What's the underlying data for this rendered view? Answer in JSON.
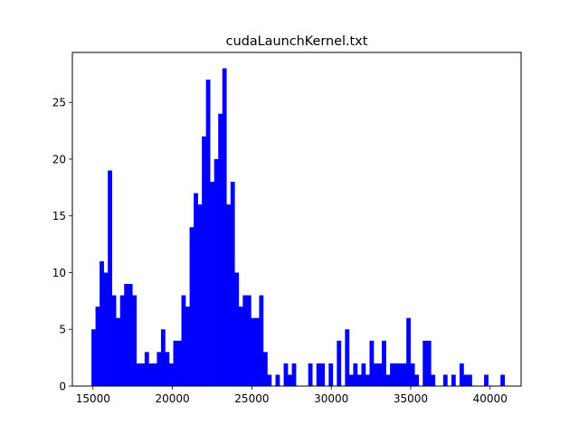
{
  "chart_data": {
    "type": "bar",
    "title": "cudaLaunchKernel.txt",
    "xlabel": "",
    "ylabel": "",
    "xlim": [
      13700,
      41950
    ],
    "ylim": [
      0,
      29.4
    ],
    "x_ticks": [
      15000,
      20000,
      25000,
      30000,
      35000,
      40000
    ],
    "y_ticks": [
      0,
      5,
      10,
      15,
      20,
      25
    ],
    "bar_color": "#0000ff",
    "bin_start": 14900,
    "bin_width": 257.5,
    "values": [
      5,
      7,
      11,
      10,
      19,
      8,
      6,
      8,
      9,
      9,
      8,
      2,
      2,
      3,
      2,
      2,
      3,
      5,
      3,
      2,
      4,
      4,
      8,
      7,
      14,
      17,
      16,
      22,
      27,
      18,
      20,
      24,
      28,
      16,
      18,
      10,
      7,
      8,
      8,
      6,
      6,
      8,
      3,
      1,
      0,
      1,
      0,
      2,
      1,
      2,
      0,
      0,
      0,
      2,
      0,
      2,
      2,
      0,
      2,
      0,
      4,
      0,
      5,
      1,
      2,
      1,
      2,
      1,
      4,
      2,
      2,
      4,
      1,
      2,
      2,
      2,
      2,
      6,
      2,
      1,
      0,
      4,
      4,
      1,
      0,
      0,
      1,
      0,
      1,
      0,
      2,
      1,
      1,
      0,
      0,
      0,
      1,
      0,
      0,
      0,
      1
    ]
  }
}
